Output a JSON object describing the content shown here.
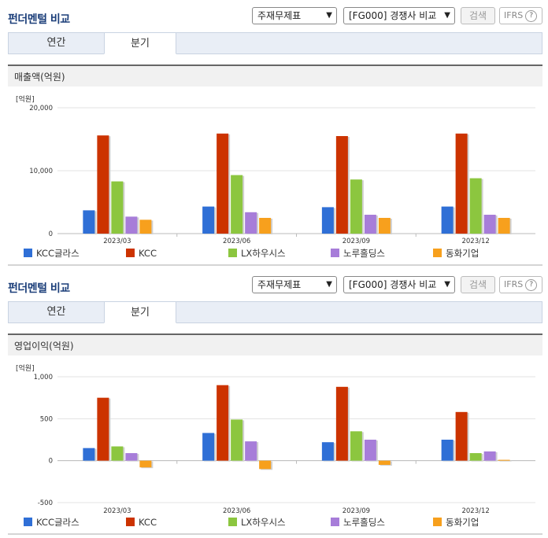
{
  "panels": [
    {
      "title": "펀더멘털 비교",
      "select1": "주재무제표",
      "select2": "[FG000] 경쟁사 비교",
      "search_label": "검색",
      "ifrs_label": "IFRS",
      "tabs": [
        {
          "label": "연간"
        },
        {
          "label": "분기"
        }
      ],
      "active_tab": "분기",
      "chart_title": "매출액(억원)",
      "unit": "[억원]"
    },
    {
      "title": "펀더멘털 비교",
      "select1": "주재무제표",
      "select2": "[FG000] 경쟁사 비교",
      "search_label": "검색",
      "ifrs_label": "IFRS",
      "tabs": [
        {
          "label": "연간"
        },
        {
          "label": "분기"
        }
      ],
      "active_tab": "분기",
      "chart_title": "영업이익(억원)",
      "unit": "[억원]"
    }
  ],
  "chart_data": [
    {
      "type": "bar",
      "title": "매출액(억원)",
      "ylabel": "[억원]",
      "categories": [
        "2023/03",
        "2023/06",
        "2023/09",
        "2023/12"
      ],
      "ylim": [
        0,
        20000
      ],
      "yticks": [
        0,
        10000,
        20000
      ],
      "ytick_labels": [
        "0",
        "10,000",
        "20,000"
      ],
      "series": [
        {
          "name": "KCC글라스",
          "color": "#2f6fd6",
          "values": [
            3700,
            4300,
            4200,
            4300
          ]
        },
        {
          "name": "KCC",
          "color": "#cc3300",
          "values": [
            15600,
            15900,
            15500,
            15900
          ]
        },
        {
          "name": "LX하우시스",
          "color": "#8cc63f",
          "values": [
            8300,
            9300,
            8600,
            8800
          ]
        },
        {
          "name": "노루홀딩스",
          "color": "#a77dd9",
          "values": [
            2700,
            3400,
            3000,
            3000
          ]
        },
        {
          "name": "동화기업",
          "color": "#f7a01d",
          "values": [
            2200,
            2500,
            2500,
            2500
          ]
        }
      ]
    },
    {
      "type": "bar",
      "title": "영업이익(억원)",
      "ylabel": "[억원]",
      "categories": [
        "2023/03",
        "2023/06",
        "2023/09",
        "2023/12"
      ],
      "ylim": [
        -500,
        1000
      ],
      "yticks": [
        -500,
        0,
        500,
        1000
      ],
      "ytick_labels": [
        "-500",
        "0",
        "500",
        "1,000"
      ],
      "series": [
        {
          "name": "KCC글라스",
          "color": "#2f6fd6",
          "values": [
            150,
            330,
            220,
            250
          ]
        },
        {
          "name": "KCC",
          "color": "#cc3300",
          "values": [
            750,
            900,
            880,
            580
          ]
        },
        {
          "name": "LX하우시스",
          "color": "#8cc63f",
          "values": [
            170,
            490,
            350,
            90
          ]
        },
        {
          "name": "노루홀딩스",
          "color": "#a77dd9",
          "values": [
            90,
            230,
            250,
            110
          ]
        },
        {
          "name": "동화기업",
          "color": "#f7a01d",
          "values": [
            -80,
            -100,
            -50,
            10
          ]
        }
      ]
    }
  ]
}
